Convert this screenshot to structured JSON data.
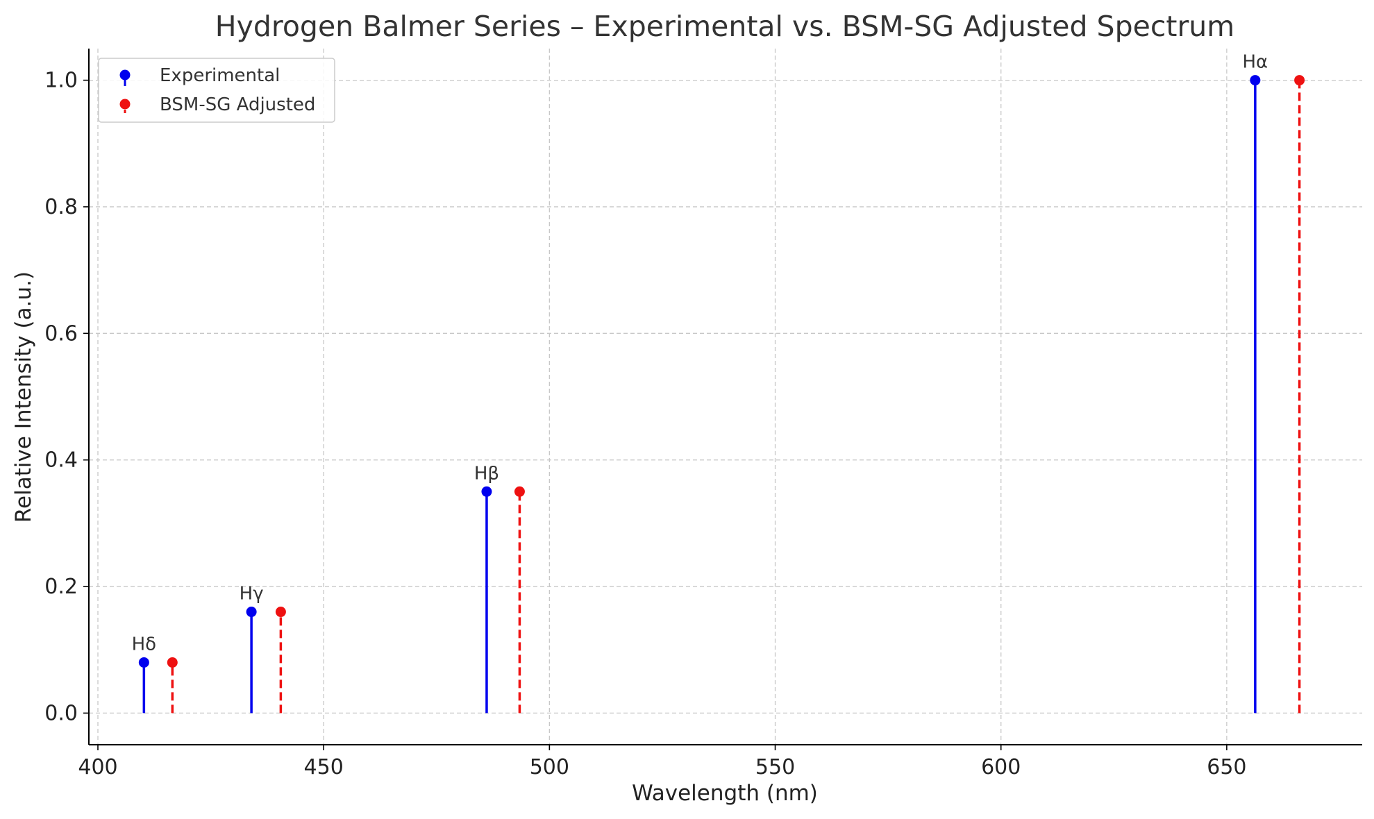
{
  "chart_data": {
    "type": "stem",
    "title": "Hydrogen Balmer Series – Experimental vs. BSM-SG Adjusted Spectrum",
    "xlabel": "Wavelength (nm)",
    "ylabel": "Relative Intensity (a.u.)",
    "xlim": [
      398,
      680
    ],
    "ylim": [
      -0.05,
      1.05
    ],
    "xticks": [
      400,
      450,
      500,
      550,
      600,
      650
    ],
    "yticks": [
      0.0,
      0.2,
      0.4,
      0.6,
      0.8,
      1.0
    ],
    "xtick_labels": [
      "400",
      "450",
      "500",
      "550",
      "600",
      "650"
    ],
    "ytick_labels": [
      "0.0",
      "0.2",
      "0.4",
      "0.6",
      "0.8",
      "1.0"
    ],
    "grid": true,
    "legend_position": "top-left",
    "series": [
      {
        "name": "Experimental",
        "color": "#0000ee",
        "line_style": "solid",
        "points": [
          {
            "x": 410.2,
            "y": 0.08
          },
          {
            "x": 434.0,
            "y": 0.16
          },
          {
            "x": 486.1,
            "y": 0.35
          },
          {
            "x": 656.3,
            "y": 1.0
          }
        ]
      },
      {
        "name": "BSM-SG Adjusted",
        "color": "#ee1111",
        "line_style": "dashed",
        "points": [
          {
            "x": 416.5,
            "y": 0.08
          },
          {
            "x": 440.5,
            "y": 0.16
          },
          {
            "x": 493.4,
            "y": 0.35
          },
          {
            "x": 666.1,
            "y": 1.0
          }
        ]
      }
    ],
    "annotations": [
      {
        "text": "Hδ",
        "x": 410.2,
        "y": 0.08
      },
      {
        "text": "Hγ",
        "x": 434.0,
        "y": 0.16
      },
      {
        "text": "Hβ",
        "x": 486.1,
        "y": 0.35
      },
      {
        "text": "Hα",
        "x": 656.3,
        "y": 1.0
      }
    ]
  }
}
